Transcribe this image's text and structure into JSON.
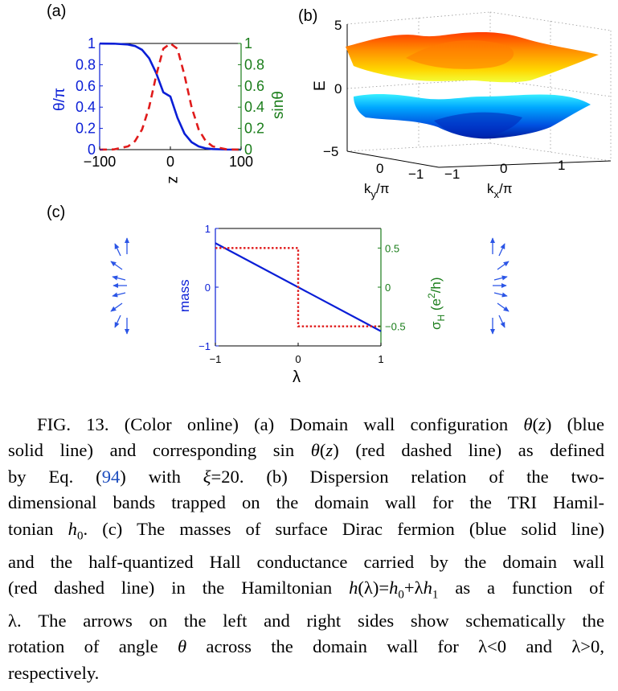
{
  "colors": {
    "blue": "#0a1ed6",
    "red": "#e01b1b",
    "green": "#1a7d1a",
    "black": "#000000",
    "link": "#1f4fbf"
  },
  "chart_data": [
    {
      "type": "line",
      "panel_label": "(a)",
      "xlabel": "z",
      "ylabel_left": "θ/π",
      "ylabel_right": "sinθ",
      "xlim": [
        -100,
        100
      ],
      "ylim": [
        0,
        1
      ],
      "xticks": [
        "−100",
        "0",
        "100"
      ],
      "yticks_left": [
        "0",
        "0.2",
        "0.4",
        "0.6",
        "0.8",
        "1"
      ],
      "yticks_right": [
        "0",
        "0.2",
        "0.4",
        "0.6",
        "0.8",
        "1"
      ],
      "series": [
        {
          "style": "blue-solid",
          "x": [
            -100,
            -80,
            -60,
            -50,
            -40,
            -30,
            -20,
            -10,
            0,
            10,
            20,
            30,
            40,
            50,
            60,
            80,
            100
          ],
          "y": [
            0.999,
            0.998,
            0.99,
            0.976,
            0.94,
            0.86,
            0.72,
            0.54,
            0.5,
            0.3,
            0.15,
            0.07,
            0.03,
            0.012,
            0.005,
            0.001,
            0.0
          ]
        },
        {
          "style": "red-dashed",
          "x": [
            -100,
            -80,
            -60,
            -50,
            -40,
            -30,
            -20,
            -10,
            0,
            10,
            20,
            30,
            40,
            50,
            60,
            80,
            100
          ],
          "y": [
            0.0,
            0.002,
            0.03,
            0.08,
            0.19,
            0.4,
            0.7,
            0.95,
            1.0,
            0.95,
            0.7,
            0.4,
            0.19,
            0.08,
            0.03,
            0.002,
            0.0
          ]
        }
      ]
    },
    {
      "type": "surface",
      "panel_label": "(b)",
      "zlabel": "E",
      "zticks": [
        "−5",
        "0",
        "5"
      ],
      "ylabel": "k_y/π",
      "yticks": [
        "−1",
        "0",
        "1"
      ],
      "xlabel": "k_x/π",
      "xticks": [
        "−1",
        "0",
        "1"
      ],
      "zlim": [
        -5,
        5
      ],
      "bands": [
        "upper",
        "lower"
      ]
    },
    {
      "type": "line",
      "panel_label": "(c)",
      "xlabel": "λ",
      "ylabel_left": "mass",
      "ylabel_right": "σ_H (e²/h)",
      "xlim": [
        -1,
        1
      ],
      "ylim_left": [
        -1,
        1
      ],
      "ylim_right": [
        -0.75,
        0.75
      ],
      "xticks": [
        "−1",
        "0",
        "1"
      ],
      "yticks_left": [
        "−1",
        "0",
        "1"
      ],
      "yticks_right": [
        "−0.5",
        "0",
        "0.5"
      ],
      "series": [
        {
          "style": "blue-solid",
          "axis": "left",
          "x": [
            -1,
            1
          ],
          "y": [
            0.75,
            -0.75
          ]
        },
        {
          "style": "red-dotted",
          "axis": "right",
          "x": [
            -1,
            0,
            0,
            1
          ],
          "y": [
            0.5,
            0.5,
            -0.5,
            -0.5
          ]
        }
      ]
    }
  ],
  "caption": {
    "lines": [
      [
        {
          "t": "        FIG. 13. (Color online) (a) Domain wall configuration "
        },
        {
          "t": "θ",
          "i": 1
        },
        {
          "t": "("
        },
        {
          "t": "z",
          "i": 1
        },
        {
          "t": ") (blue"
        }
      ],
      [
        {
          "t": "solid line) and corresponding sin "
        },
        {
          "t": "θ",
          "i": 1
        },
        {
          "t": "("
        },
        {
          "t": "z",
          "i": 1
        },
        {
          "t": ") (red dashed line) as defined"
        }
      ],
      [
        {
          "t": "by Eq. ("
        },
        {
          "t": "94",
          "r": 1
        },
        {
          "t": ") with "
        },
        {
          "t": "ξ",
          "i": 1
        },
        {
          "t": "=20. (b) Dispersion relation of the two-"
        }
      ],
      [
        {
          "t": "dimensional bands trapped on the domain wall for the TRI Hamil-"
        }
      ],
      [
        {
          "t": "tonian "
        },
        {
          "t": "h",
          "i": 1
        },
        {
          "t": "0",
          "s": 1
        },
        {
          "t": ". (c) The masses of surface Dirac fermion (blue solid line)"
        }
      ],
      [
        {
          "t": "and the half-quantized Hall conductance carried by the domain wall"
        }
      ],
      [
        {
          "t": "(red dashed line) in the Hamiltonian "
        },
        {
          "t": "h",
          "i": 1
        },
        {
          "t": "(λ)="
        },
        {
          "t": "h",
          "i": 1
        },
        {
          "t": "0",
          "s": 1
        },
        {
          "t": "+λ"
        },
        {
          "t": "h",
          "i": 1
        },
        {
          "t": "1",
          "s": 1
        },
        {
          "t": " as a function of"
        }
      ],
      [
        {
          "t": "λ. The arrows on the left and right sides show schematically the"
        }
      ],
      [
        {
          "t": "rotation of angle "
        },
        {
          "t": "θ",
          "i": 1
        },
        {
          "t": " across the domain wall for λ<0 and λ>0,"
        }
      ],
      [
        {
          "t": "respectively."
        }
      ]
    ]
  }
}
